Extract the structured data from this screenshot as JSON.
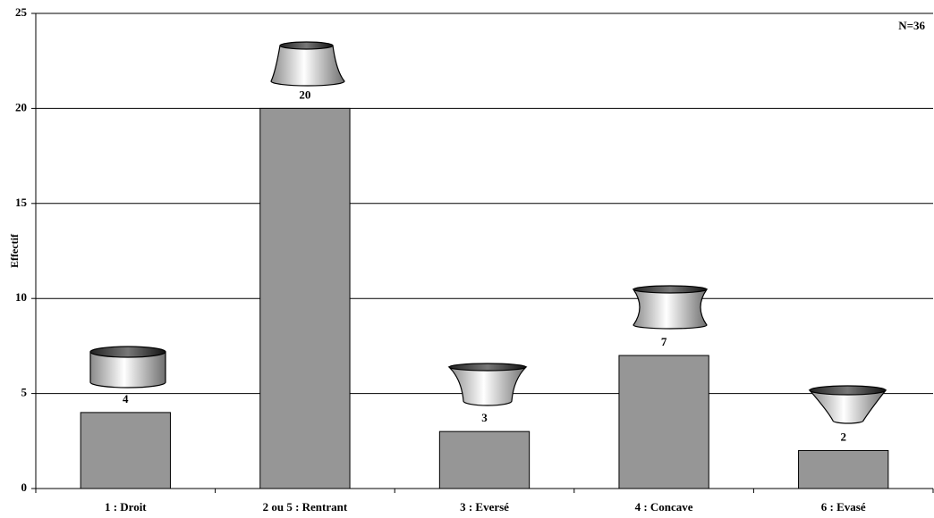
{
  "chart_data": {
    "type": "bar",
    "y_label": "Effectif",
    "annotation": "N=36",
    "categories": [
      "1 : Droit",
      "2 ou 5 : Rentrant",
      "3 : Eversé",
      "4 : Concave",
      "6 : Evasé"
    ],
    "values": [
      4,
      20,
      3,
      7,
      2
    ],
    "color": "#969696",
    "ylim": [
      0,
      25
    ],
    "yticks": [
      0,
      5,
      10,
      15,
      20,
      25
    ],
    "grid": true
  }
}
